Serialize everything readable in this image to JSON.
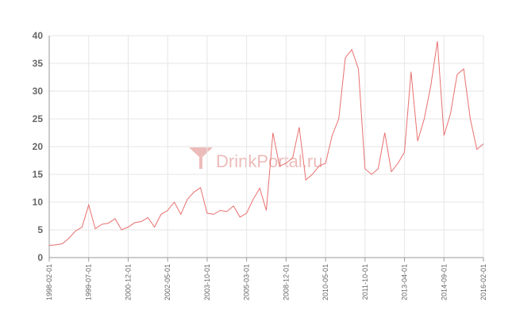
{
  "chart_data": {
    "type": "line",
    "watermark": "DrinkPortal.ru",
    "categories": [
      "1998-02-01",
      null,
      null,
      null,
      null,
      null,
      "1999-07-01",
      null,
      null,
      null,
      null,
      null,
      "2000-12-01",
      null,
      null,
      null,
      null,
      null,
      "2002-05-01",
      null,
      null,
      null,
      null,
      null,
      "2003-10-01",
      null,
      null,
      null,
      null,
      null,
      "2005-03-01",
      null,
      null,
      null,
      null,
      null,
      "2008-12-01",
      null,
      null,
      null,
      null,
      null,
      "2010-05-01",
      null,
      null,
      null,
      null,
      null,
      "2011-10-01",
      null,
      null,
      null,
      null,
      null,
      "2013-04-01",
      null,
      null,
      null,
      null,
      null,
      "2014-09-01",
      null,
      null,
      null,
      null,
      null,
      "2016-02-01"
    ],
    "series": [
      {
        "color": "#e8706f",
        "values": [
          2.2,
          2.3,
          2.5,
          3.5,
          4.8,
          5.5,
          9.5,
          5.2,
          6,
          6.2,
          7,
          5,
          5.5,
          6.3,
          6.5,
          7.2,
          5.5,
          7.8,
          8.5,
          10,
          7.8,
          10.5,
          11.8,
          12.6,
          8,
          7.8,
          8.5,
          8.3,
          9.3,
          7.3,
          8,
          10.5,
          12.5,
          8.5,
          22.5,
          16.5,
          17,
          18,
          23.5,
          14,
          15,
          16.5,
          17,
          22,
          25,
          36,
          37.5,
          34,
          16,
          15,
          16,
          22.5,
          15.5,
          17,
          19,
          33.5,
          21,
          25,
          31,
          39,
          22,
          26,
          33,
          34,
          25,
          19.5,
          20.5
        ]
      }
    ],
    "ylim": [
      0,
      40
    ],
    "yticks": [
      0,
      5,
      10,
      15,
      20,
      25,
      30,
      35,
      40
    ],
    "grid": true
  }
}
